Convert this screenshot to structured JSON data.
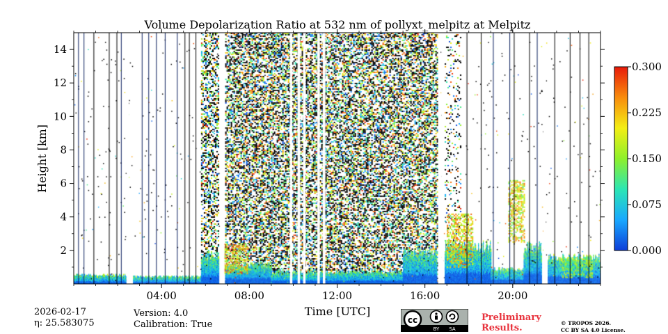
{
  "chart_data": {
    "type": "heatmap",
    "title": "Volume Depolarization Ratio at 532 nm of pollyxt_melpitz at Melpitz",
    "xlabel": "Time [UTC]",
    "ylabel": "Height [km]",
    "x_unit": "hours UTC",
    "xlim": [
      0,
      24
    ],
    "ylim": [
      0,
      15
    ],
    "x_ticks": [
      {
        "value": 4,
        "label": "04:00"
      },
      {
        "value": 8,
        "label": "08:00"
      },
      {
        "value": 12,
        "label": "12:00"
      },
      {
        "value": 16,
        "label": "16:00"
      },
      {
        "value": 20,
        "label": "20:00"
      }
    ],
    "y_ticks": [
      {
        "value": 2,
        "label": "2"
      },
      {
        "value": 4,
        "label": "4"
      },
      {
        "value": 6,
        "label": "6"
      },
      {
        "value": 8,
        "label": "8"
      },
      {
        "value": 10,
        "label": "10"
      },
      {
        "value": 12,
        "label": "12"
      },
      {
        "value": 14,
        "label": "14"
      }
    ],
    "colorbar": {
      "min": 0.0,
      "max": 0.3,
      "ticks": [
        {
          "value": 0.0,
          "label": "0.000"
        },
        {
          "value": 0.075,
          "label": "0.075"
        },
        {
          "value": 0.15,
          "label": "0.150"
        },
        {
          "value": 0.225,
          "label": "0.225"
        },
        {
          "value": 0.3,
          "label": "0.300"
        }
      ],
      "colors": [
        "#0d3dd8",
        "#18a8ff",
        "#2be6b4",
        "#8ef02a",
        "#f3ee14",
        "#f88c0c",
        "#e81a0a"
      ]
    },
    "noise_regions": [
      {
        "start_hour": 5.8,
        "end_hour": 6.6,
        "density": 0.45
      },
      {
        "start_hour": 6.9,
        "end_hour": 16.55,
        "density": 0.55
      },
      {
        "start_hour": 16.9,
        "end_hour": 17.6,
        "density": 0.12
      }
    ],
    "boundary_layer": [
      {
        "start_hour": 0.0,
        "end_hour": 2.4,
        "top_km": 0.6
      },
      {
        "start_hour": 2.7,
        "end_hour": 5.8,
        "top_km": 0.5
      },
      {
        "start_hour": 5.8,
        "end_hour": 6.6,
        "top_km": 2.0
      },
      {
        "start_hour": 6.9,
        "end_hour": 9.0,
        "top_km": 1.3
      },
      {
        "start_hour": 9.0,
        "end_hour": 15.0,
        "top_km": 0.8
      },
      {
        "start_hour": 15.0,
        "end_hour": 16.55,
        "top_km": 2.2
      },
      {
        "start_hour": 16.9,
        "end_hour": 19.0,
        "top_km": 2.6
      },
      {
        "start_hour": 19.0,
        "end_hour": 20.5,
        "top_km": 1.0
      },
      {
        "start_hour": 20.5,
        "end_hour": 21.3,
        "top_km": 2.6
      },
      {
        "start_hour": 21.6,
        "end_hour": 24.0,
        "top_km": 1.8
      }
    ],
    "elevated_layers": [
      {
        "start_hour": 6.8,
        "end_hour": 7.9,
        "base_km": 0.6,
        "top_km": 2.4,
        "depol": 0.26
      },
      {
        "start_hour": 17.0,
        "end_hour": 18.2,
        "base_km": 1.0,
        "top_km": 4.2,
        "depol": 0.25
      },
      {
        "start_hour": 19.8,
        "end_hour": 20.5,
        "base_km": 2.5,
        "top_km": 6.2,
        "depol": 0.24
      },
      {
        "start_hour": 22.2,
        "end_hour": 23.6,
        "base_km": 0.4,
        "top_km": 1.6,
        "depol": 0.18
      }
    ],
    "gap_hours": [
      2.4,
      6.65,
      6.75,
      9.85,
      10.2,
      10.45,
      11.1,
      11.35,
      16.6,
      16.75,
      21.4
    ]
  },
  "footer": {
    "date": "2026-02-17",
    "eta": "η: 25.583075",
    "version": "Version: 4.0",
    "calibration": "Calibration: True",
    "preliminary": [
      "Preliminary",
      "Results."
    ],
    "copyright": [
      "© TROPOS 2026.",
      "CC BY SA 4.0 License."
    ],
    "license_badge": [
      "BY",
      "SA"
    ]
  }
}
